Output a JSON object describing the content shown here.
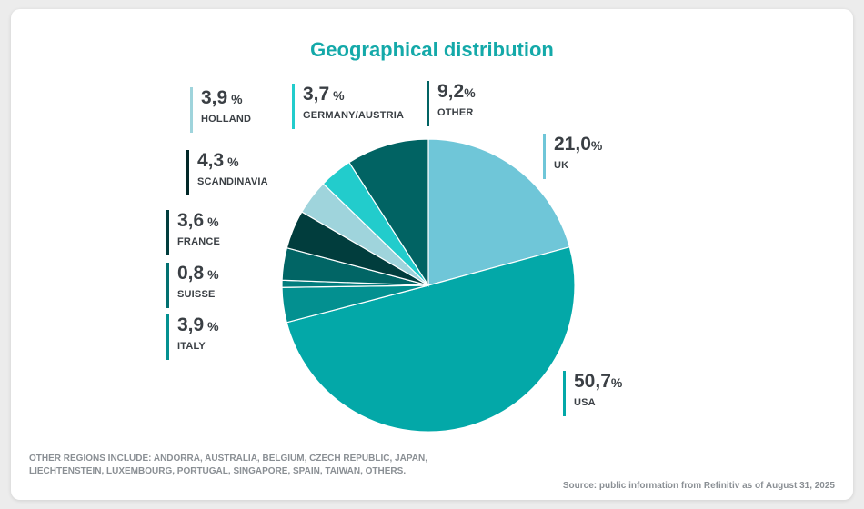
{
  "chart_data": {
    "type": "pie",
    "title": "Geographical distribution",
    "unit": "%",
    "slices": [
      {
        "label": "UK",
        "value": 21.0,
        "display": "21,0",
        "unit": "%",
        "color": "#6fc6d8"
      },
      {
        "label": "USA",
        "value": 50.7,
        "display": "50,7",
        "unit": "%",
        "color": "#03a8a8"
      },
      {
        "label": "ITALY",
        "value": 3.9,
        "display": "3,9",
        "unit": " %",
        "color": "#039090"
      },
      {
        "label": "SUISSE",
        "value": 0.8,
        "display": "0,8",
        "unit": " %",
        "color": "#017d7d"
      },
      {
        "label": "FRANCE",
        "value": 3.6,
        "display": "3,6",
        "unit": " %",
        "color": "#016565"
      },
      {
        "label": "SCANDINAVIA",
        "value": 4.3,
        "display": "4,3",
        "unit": " %",
        "color": "#013d3d"
      },
      {
        "label": "HOLLAND",
        "value": 3.9,
        "display": "3,9",
        "unit": " %",
        "color": "#9fd4dc"
      },
      {
        "label": "GERMANY/AUSTRIA",
        "value": 3.7,
        "display": "3,7",
        "unit": " %",
        "color": "#22cccc"
      },
      {
        "label": "OTHER",
        "value": 9.2,
        "display": "9,2",
        "unit": "%",
        "color": "#016363"
      }
    ],
    "legend_bar_colors": {
      "UK": "#6fc6d8",
      "USA": "#03a8a8",
      "ITALY": "#039090",
      "SUISSE": "#017070",
      "FRANCE": "#013d3d",
      "SCANDINAVIA": "#012828",
      "HOLLAND": "#9fd4dc",
      "GERMANY/AUSTRIA": "#22cccc",
      "OTHER": "#016363"
    }
  },
  "footnote": "OTHER REGIONS INCLUDE: ANDORRA, AUSTRALIA, BELGIUM, CZECH REPUBLIC, JAPAN, LIECHTENSTEIN, LUXEMBOURG, PORTUGAL, SINGAPORE, SPAIN, TAIWAN, OTHERS.",
  "source": "Source: public information from Refinitiv as of August 31, 2025"
}
